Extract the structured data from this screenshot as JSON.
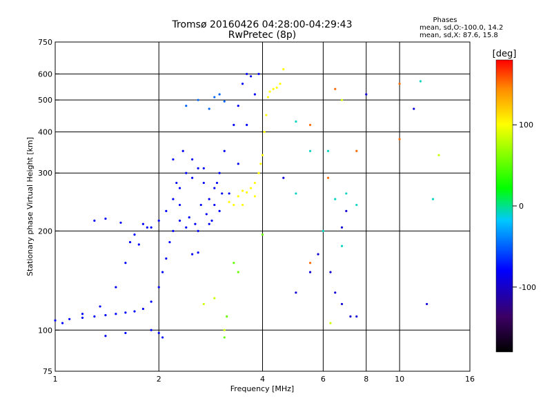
{
  "chart_data": {
    "type": "scatter",
    "title": "Tromsø 20160426 04:28:00-04:29:43",
    "subtitle": "RwPretec (8p)",
    "xlabel": "Frequency [MHz]",
    "ylabel": "Stationary phase Virtual Height [km]",
    "x_scale": "log",
    "y_scale": "log",
    "xlim": [
      1,
      16
    ],
    "ylim": [
      75,
      750
    ],
    "x_ticks": [
      1,
      2,
      4,
      6,
      8,
      10,
      16
    ],
    "x_tick_labels": [
      "1",
      "2",
      "4",
      "6",
      "8",
      "10",
      "16"
    ],
    "x_grid": [
      2,
      4,
      6,
      8,
      10
    ],
    "y_ticks": [
      75,
      100,
      200,
      300,
      400,
      500,
      600,
      750
    ],
    "y_tick_labels": [
      "75",
      "100",
      "200",
      "300",
      "400",
      "500",
      "600",
      "750"
    ],
    "y_grid": [
      100,
      200,
      300,
      400,
      500,
      600
    ],
    "grid": true,
    "stats": {
      "heading": "Phases",
      "line1": "mean, sd,O:-100.0, 14.2",
      "line2": "mean, sd,X:  87.6, 15.8"
    },
    "colorbar": {
      "label": "[deg]",
      "range": [
        -180,
        180
      ],
      "ticks": [
        100,
        0,
        -100
      ],
      "tick_labels": [
        "100",
        "0",
        "-100"
      ],
      "colormap": "rainbow",
      "colors": [
        "#000000",
        "#3c0064",
        "#0000ff",
        "#00c8ff",
        "#00ff00",
        "#ffff00",
        "#ff8c00",
        "#ff0000"
      ]
    },
    "series": [
      {
        "phase": -100,
        "points": [
          [
            1.0,
            107
          ],
          [
            1.05,
            105
          ],
          [
            1.1,
            108
          ],
          [
            1.2,
            109
          ],
          [
            1.3,
            110
          ],
          [
            1.4,
            111
          ],
          [
            1.5,
            112
          ],
          [
            1.6,
            113
          ],
          [
            1.7,
            114
          ],
          [
            1.8,
            116
          ],
          [
            1.9,
            122
          ],
          [
            2.0,
            135
          ],
          [
            2.05,
            150
          ],
          [
            2.1,
            165
          ],
          [
            2.15,
            185
          ],
          [
            2.2,
            200
          ],
          [
            2.3,
            215
          ],
          [
            2.4,
            205
          ],
          [
            2.6,
            200
          ],
          [
            2.8,
            210
          ],
          [
            3.0,
            230
          ],
          [
            3.2,
            260
          ],
          [
            3.4,
            320
          ],
          [
            3.6,
            420
          ],
          [
            3.8,
            520
          ],
          [
            3.9,
            600
          ],
          [
            1.2,
            112
          ],
          [
            1.35,
            118
          ],
          [
            1.5,
            135
          ],
          [
            1.6,
            160
          ],
          [
            1.7,
            195
          ],
          [
            1.8,
            210
          ],
          [
            1.9,
            205
          ],
          [
            2.0,
            215
          ],
          [
            2.1,
            230
          ],
          [
            1.3,
            215
          ],
          [
            1.4,
            218
          ],
          [
            1.55,
            212
          ],
          [
            1.65,
            185
          ],
          [
            1.75,
            182
          ],
          [
            1.85,
            205
          ],
          [
            2.2,
            250
          ],
          [
            2.3,
            270
          ],
          [
            2.4,
            300
          ],
          [
            2.5,
            330
          ],
          [
            2.6,
            310
          ],
          [
            2.7,
            280
          ],
          [
            2.8,
            250
          ],
          [
            2.9,
            270
          ],
          [
            3.0,
            300
          ],
          [
            3.1,
            350
          ],
          [
            3.3,
            420
          ],
          [
            3.4,
            480
          ],
          [
            3.5,
            560
          ],
          [
            3.6,
            600
          ],
          [
            3.7,
            590
          ],
          [
            2.2,
            330
          ],
          [
            2.35,
            350
          ],
          [
            2.5,
            290
          ],
          [
            2.65,
            240
          ],
          [
            2.75,
            225
          ],
          [
            2.9,
            240
          ],
          [
            3.05,
            260
          ],
          [
            2.3,
            240
          ],
          [
            2.45,
            220
          ],
          [
            2.55,
            210
          ],
          [
            2.85,
            215
          ],
          [
            2.25,
            280
          ],
          [
            2.7,
            310
          ],
          [
            2.95,
            280
          ]
        ]
      },
      {
        "phase": -70,
        "points": [
          [
            2.4,
            480
          ],
          [
            2.6,
            500
          ],
          [
            2.8,
            470
          ],
          [
            2.9,
            510
          ],
          [
            3.0,
            520
          ],
          [
            3.1,
            495
          ]
        ]
      },
      {
        "phase": 100,
        "points": [
          [
            3.3,
            240
          ],
          [
            3.4,
            255
          ],
          [
            3.5,
            265
          ],
          [
            3.6,
            262
          ],
          [
            3.7,
            270
          ],
          [
            3.8,
            280
          ],
          [
            3.9,
            300
          ],
          [
            4.0,
            340
          ],
          [
            4.05,
            400
          ],
          [
            4.1,
            450
          ],
          [
            4.15,
            510
          ],
          [
            4.2,
            530
          ],
          [
            4.3,
            540
          ],
          [
            4.4,
            545
          ],
          [
            4.5,
            560
          ],
          [
            4.6,
            620
          ],
          [
            3.2,
            245
          ],
          [
            3.5,
            240
          ],
          [
            3.8,
            255
          ],
          [
            3.95,
            320
          ]
        ]
      },
      {
        "phase": 40,
        "points": [
          [
            4.0,
            195
          ],
          [
            3.3,
            160
          ],
          [
            3.4,
            150
          ],
          [
            3.15,
            110
          ],
          [
            3.1,
            95
          ]
        ]
      },
      {
        "phase": -30,
        "points": [
          [
            5.0,
            430
          ],
          [
            5.5,
            350
          ],
          [
            6.2,
            350
          ],
          [
            6.0,
            200
          ],
          [
            6.5,
            250
          ],
          [
            7.0,
            260
          ],
          [
            11.5,
            570
          ],
          [
            12.5,
            250
          ],
          [
            5.0,
            260
          ],
          [
            6.8,
            180
          ],
          [
            7.5,
            240
          ]
        ]
      },
      {
        "phase": 150,
        "points": [
          [
            6.5,
            540
          ],
          [
            7.5,
            350
          ],
          [
            10.0,
            560
          ],
          [
            10.0,
            380
          ],
          [
            5.5,
            420
          ],
          [
            6.2,
            290
          ],
          [
            5.5,
            160
          ]
        ]
      },
      {
        "phase": -110,
        "points": [
          [
            4.6,
            290
          ],
          [
            5.0,
            130
          ],
          [
            5.5,
            150
          ],
          [
            5.8,
            170
          ],
          [
            6.3,
            150
          ],
          [
            6.5,
            130
          ],
          [
            6.8,
            120
          ],
          [
            7.2,
            110
          ],
          [
            7.5,
            110
          ],
          [
            6.8,
            205
          ],
          [
            7.0,
            230
          ],
          [
            8.0,
            520
          ],
          [
            11.0,
            470
          ],
          [
            12.0,
            120
          ]
        ]
      },
      {
        "phase": 80,
        "points": [
          [
            2.7,
            120
          ],
          [
            2.9,
            125
          ],
          [
            3.1,
            100
          ],
          [
            6.3,
            105
          ],
          [
            6.8,
            500
          ],
          [
            13.0,
            340
          ]
        ]
      },
      {
        "phase": -100,
        "points": [
          [
            1.4,
            96
          ],
          [
            1.6,
            98
          ],
          [
            1.9,
            100
          ],
          [
            2.0,
            98
          ],
          [
            2.05,
            95
          ],
          [
            2.5,
            170
          ],
          [
            2.6,
            172
          ]
        ]
      }
    ]
  }
}
